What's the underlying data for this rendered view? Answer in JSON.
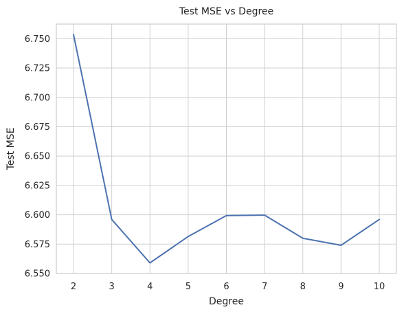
{
  "chart_data": {
    "type": "line",
    "title": "Test MSE vs Degree",
    "xlabel": "Degree",
    "ylabel": "Test MSE",
    "x": [
      2,
      3,
      4,
      5,
      6,
      7,
      8,
      9,
      10
    ],
    "x_tick_labels": [
      "2",
      "3",
      "4",
      "5",
      "6",
      "7",
      "8",
      "9",
      "10"
    ],
    "y_tick_labels": [
      "6.550",
      "6.575",
      "6.600",
      "6.625",
      "6.650",
      "6.675",
      "6.700",
      "6.725",
      "6.750"
    ],
    "xlim": [
      1.55,
      10.45
    ],
    "ylim": [
      6.55,
      6.7625
    ],
    "grid": true,
    "series": [
      {
        "values": [
          6.7535,
          6.596,
          6.559,
          6.5815,
          6.5993,
          6.5997,
          6.58,
          6.574,
          6.596
        ],
        "color": "#4c72b0"
      }
    ]
  }
}
